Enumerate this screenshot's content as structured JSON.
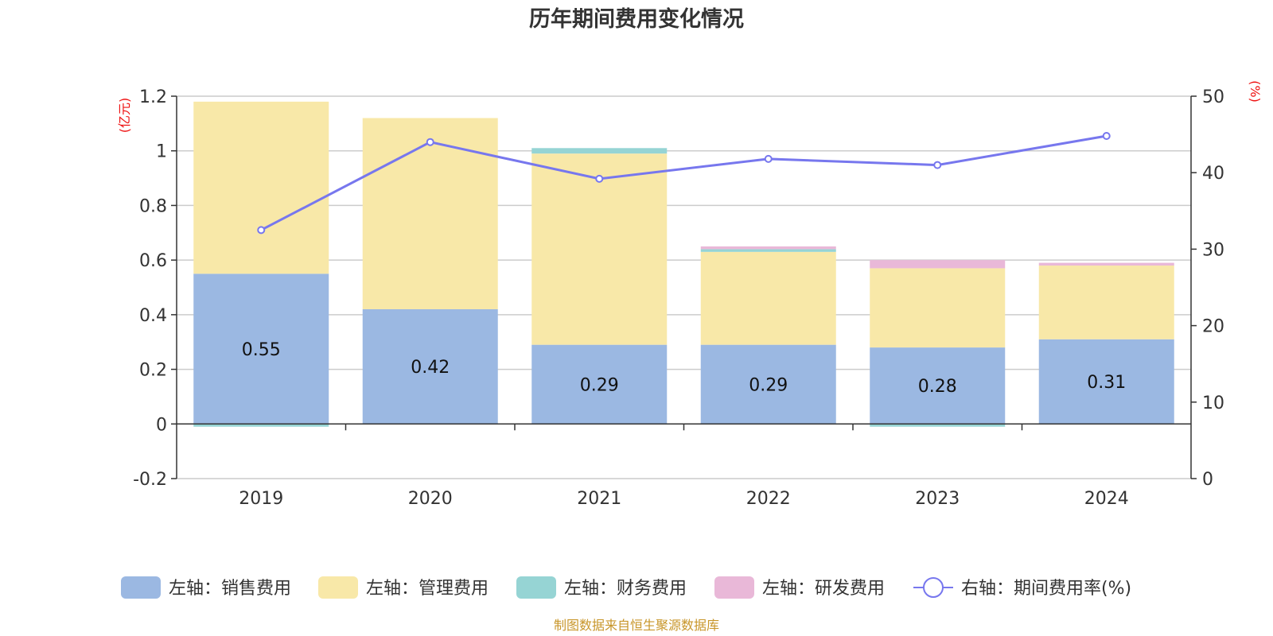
{
  "chart_data": {
    "type": "bar",
    "title": "历年期间费用变化情况",
    "categories": [
      "2019",
      "2020",
      "2021",
      "2022",
      "2023",
      "2024"
    ],
    "left_axis": {
      "unit": "(亿元)",
      "ylim": [
        -0.2,
        1.2
      ],
      "ticks": [
        "-0.2",
        "0",
        "0.2",
        "0.4",
        "0.6",
        "0.8",
        "1",
        "1.2"
      ]
    },
    "right_axis": {
      "unit": "(%)",
      "ylim": [
        0,
        50
      ],
      "ticks": [
        "0",
        "10",
        "20",
        "30",
        "40",
        "50"
      ]
    },
    "stacked_series": [
      {
        "name": "左轴：销售费用",
        "color": "#9bb8e2",
        "values": [
          0.55,
          0.42,
          0.29,
          0.29,
          0.28,
          0.31
        ],
        "labels": [
          "0.55",
          "0.42",
          "0.29",
          "0.29",
          "0.28",
          "0.31"
        ]
      },
      {
        "name": "左轴：管理费用",
        "color": "#f8e8a8",
        "values": [
          0.63,
          0.7,
          0.7,
          0.34,
          0.29,
          0.27
        ]
      },
      {
        "name": "左轴：财务费用",
        "color": "#96d4d4",
        "values": [
          -0.01,
          0.0,
          0.02,
          0.01,
          -0.01,
          0.0
        ]
      },
      {
        "name": "左轴：研发费用",
        "color": "#e9b8d8",
        "values": [
          0.0,
          0.0,
          0.0,
          0.01,
          0.03,
          0.01
        ]
      }
    ],
    "line_series": {
      "name": "右轴：期间费用率(%)",
      "color": "#7777ee",
      "values": [
        32.5,
        44.0,
        39.2,
        41.8,
        41.0,
        44.8
      ]
    },
    "grid": true,
    "legend_position": "bottom"
  },
  "source_text": "制图数据来自恒生聚源数据库"
}
